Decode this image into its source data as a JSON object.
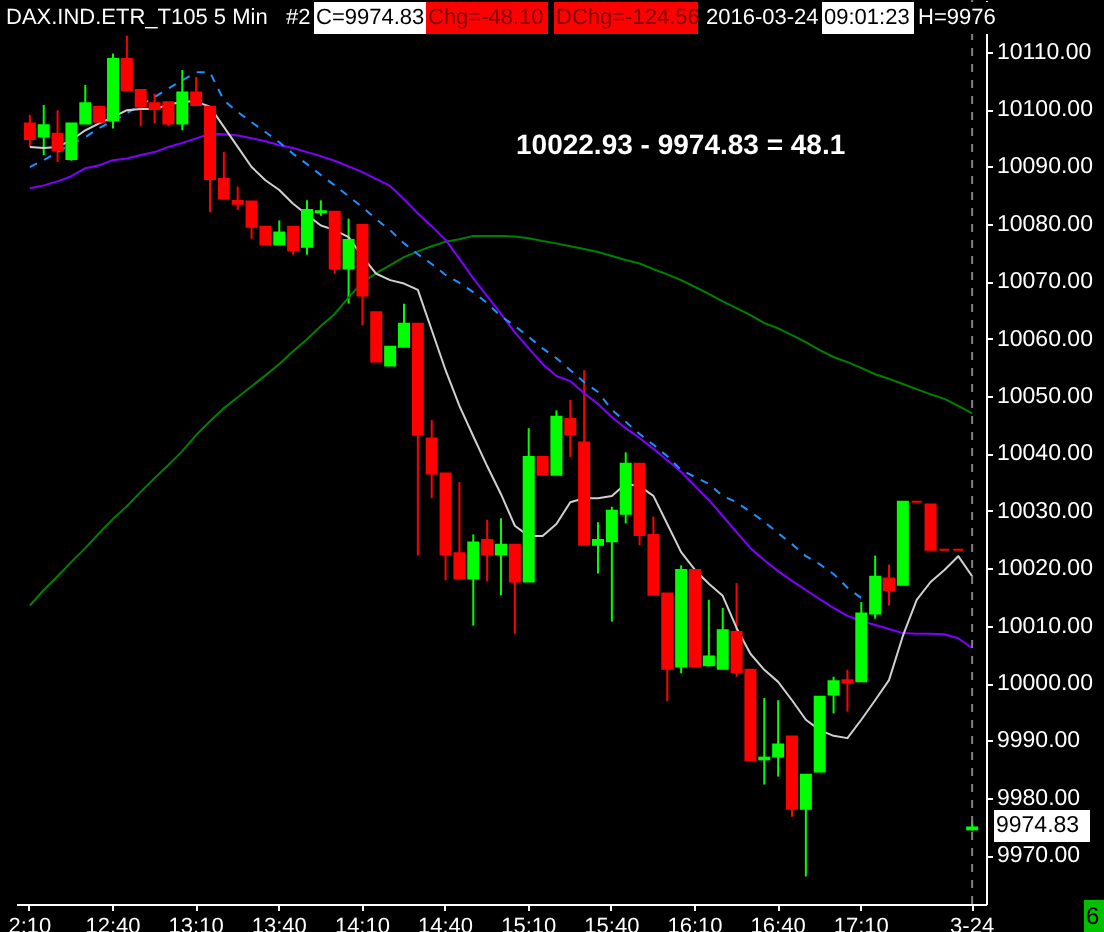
{
  "chart_data": {
    "type": "candlestick",
    "title": "DAX.IND.ETR_T105  5 Min",
    "annotations": [
      "#2",
      "C=9974.83",
      "Chg=-48.10",
      "DChg=-124.56",
      "2016-03-24",
      "09:01:23",
      "H=9976",
      "10022.93 - 9974.83 = 48.1",
      "9974.83",
      "6"
    ],
    "categories": [
      "2:10",
      null,
      null,
      null,
      null,
      null,
      "12:40",
      null,
      null,
      null,
      null,
      null,
      "13:10",
      null,
      null,
      null,
      null,
      null,
      "13:40",
      null,
      null,
      null,
      null,
      null,
      "14:10",
      null,
      null,
      null,
      null,
      null,
      "14:40",
      null,
      null,
      null,
      null,
      null,
      "15:10",
      null,
      null,
      null,
      null,
      null,
      "15:40",
      null,
      null,
      null,
      null,
      null,
      "16:10",
      null,
      null,
      null,
      null,
      null,
      "16:40",
      null,
      null,
      null,
      null,
      null,
      "17:10",
      null,
      null,
      null,
      null,
      null,
      null,
      null,
      "3-24"
    ],
    "ohlc": [
      [
        10097.5,
        10099,
        10093.4,
        10094.8
      ],
      [
        10095.2,
        10100.7,
        10092,
        10097.2
      ],
      [
        10095.7,
        10099.8,
        10090.8,
        10092.8
      ],
      [
        10091.3,
        10097.5,
        10091,
        10097.5
      ],
      [
        10097.5,
        10104.2,
        10097.5,
        10101
      ],
      [
        10100.4,
        10100.4,
        10097.8,
        10097.8
      ],
      [
        10098,
        10109.7,
        10096.6,
        10108.7
      ],
      [
        10108.7,
        10112.8,
        10103.3,
        10103.3
      ],
      [
        10103.3,
        10103.3,
        10097,
        10100.4
      ],
      [
        10101,
        10102.7,
        10097.5,
        10100
      ],
      [
        10101.2,
        10101.2,
        10097,
        10097.5
      ],
      [
        10097.5,
        10106.8,
        10096.3,
        10102.9
      ],
      [
        10102.9,
        10105.6,
        10100.7,
        10100.7
      ],
      [
        10100.4,
        10100.4,
        10082,
        10087.8
      ],
      [
        10087.8,
        10092.5,
        10084.4,
        10084.4
      ],
      [
        10084,
        10086.5,
        10082.4,
        10083.5
      ],
      [
        10083.9,
        10083.9,
        10077.4,
        10079.5
      ],
      [
        10079.5,
        10079.5,
        10076.4,
        10076.4
      ],
      [
        10076.4,
        10080.6,
        10076.4,
        10078.5
      ],
      [
        10079.5,
        10079.5,
        10074.6,
        10075.4
      ],
      [
        10076,
        10084.1,
        10074.6,
        10082.4
      ],
      [
        10082,
        10084.1,
        10081.4,
        10082.2
      ],
      [
        10082.1,
        10082.1,
        10071.3,
        10072.2
      ],
      [
        10072.2,
        10080.9,
        10066.1,
        10077.2
      ],
      [
        10079.8,
        10079.8,
        10062.3,
        10067.5
      ],
      [
        10064.6,
        10064.6,
        10056,
        10056
      ],
      [
        10055.3,
        10058.6,
        10055.3,
        10058.6
      ],
      [
        10058.6,
        10066.1,
        10058.6,
        10062.6
      ],
      [
        10062.6,
        10062.6,
        10022.2,
        10043.3
      ],
      [
        10042.6,
        10045.8,
        10032.2,
        10036.5
      ],
      [
        10036.5,
        10036.5,
        10017.9,
        10022.4
      ],
      [
        10022.6,
        10035,
        10018.2,
        10018.2
      ],
      [
        10018.2,
        10025.9,
        10010,
        10024.5
      ],
      [
        10024.9,
        10028.4,
        10017.7,
        10022.4
      ],
      [
        10022.4,
        10028.7,
        10015.3,
        10024.1
      ],
      [
        10024.1,
        10024.1,
        10008.6,
        10017.7
      ],
      [
        10017.7,
        10044.4,
        10017.7,
        10039.4
      ],
      [
        10039.4,
        10039.4,
        10036.3,
        10036.3
      ],
      [
        10036.3,
        10047.5,
        10036.3,
        10046.4
      ],
      [
        10046,
        10049.3,
        10039.4,
        10043.3
      ],
      [
        10041.9,
        10054.5,
        10024.1,
        10024.1
      ],
      [
        10024.1,
        10028,
        10019.1,
        10024.9
      ],
      [
        10024.7,
        10030.7,
        10010.7,
        10030
      ],
      [
        10029.5,
        10040.2,
        10027.8,
        10038.2
      ],
      [
        10038.2,
        10038.2,
        10024,
        10025.8
      ],
      [
        10025.8,
        10029,
        10015.4,
        10015.4
      ],
      [
        10015.6,
        10015.6,
        9996.8,
        10002.5
      ],
      [
        10002.9,
        10020.5,
        10001.7,
        10019.7
      ],
      [
        10019.7,
        10019.7,
        10002.9,
        10002.9
      ],
      [
        10003.1,
        10014.5,
        10002.9,
        10004.6
      ],
      [
        10002.5,
        10013.1,
        10002.5,
        10009.2
      ],
      [
        10008.9,
        10017.4,
        10001.1,
        10001.9
      ],
      [
        10002.3,
        10002.3,
        9986.6,
        9986.6
      ],
      [
        9986.7,
        9997.4,
        9982.3,
        9987
      ],
      [
        9987.2,
        9997,
        9983.7,
        9989.3
      ],
      [
        9990.7,
        9990.7,
        9976.7,
        9978.1
      ],
      [
        9978.1,
        9984,
        9966.3,
        9984
      ],
      [
        9984.6,
        9997.6,
        9984.6,
        9997.6
      ],
      [
        9998,
        10001.1,
        9994.7,
        10000.3
      ],
      [
        10000.5,
        10002.3,
        9995,
        10000.1
      ],
      [
        10000.3,
        10014.1,
        10000.3,
        10012.1
      ],
      [
        10012.1,
        10022.2,
        10011.2,
        10018.5
      ],
      [
        10018.2,
        10020.6,
        10013.5,
        10016.2
      ],
      [
        10017.1,
        10031.6,
        10017.1,
        10031.6
      ],
      [
        10031.6,
        10031.6,
        10031.6,
        10031.6
      ],
      [
        10031.1,
        10031.1,
        10023.2,
        10023.2
      ],
      [
        10023.2,
        10023.2,
        10023.2,
        10023.2
      ],
      [
        10023.2,
        10023.2,
        10023.2,
        10023.2
      ],
      [
        9974.5,
        9976,
        9974.3,
        9974.83
      ]
    ],
    "colors": [
      "#ff0000",
      "#00ff00",
      "#ff0000",
      "#00ff00",
      "#00ff00",
      "#ff0000",
      "#00ff00",
      "#ff0000",
      "#ff0000",
      "#ff0000",
      "#ff0000",
      "#00ff00",
      "#ff0000",
      "#ff0000",
      "#ff0000",
      "#ff0000",
      "#ff0000",
      "#ff0000",
      "#00ff00",
      "#ff0000",
      "#00ff00",
      "#00ff00",
      "#ff0000",
      "#00ff00",
      "#ff0000",
      "#ff0000",
      "#00ff00",
      "#00ff00",
      "#ff0000",
      "#ff0000",
      "#ff0000",
      "#ff0000",
      "#00ff00",
      "#ff0000",
      "#00ff00",
      "#ff0000",
      "#00ff00",
      "#ff0000",
      "#00ff00",
      "#ff0000",
      "#ff0000",
      "#00ff00",
      "#00ff00",
      "#00ff00",
      "#ff0000",
      "#ff0000",
      "#ff0000",
      "#00ff00",
      "#ff0000",
      "#00ff00",
      "#00ff00",
      "#ff0000",
      "#ff0000",
      "#00ff00",
      "#00ff00",
      "#ff0000",
      "#00ff00",
      "#00ff00",
      "#00ff00",
      "#ff0000",
      "#00ff00",
      "#00ff00",
      "#ff0000",
      "#00ff00",
      "#ff0000",
      "#ff0000",
      "#ff0000",
      "#ff0000",
      "#00ff00"
    ],
    "series": [
      {
        "type": "line",
        "color": "#008000",
        "line_style": "solid",
        "values": [
          10013.5,
          10016.2,
          10018.6,
          10021.1,
          10023.5,
          10026.1,
          10028.6,
          10030.8,
          10033.3,
          10035.7,
          10038.0,
          10040.4,
          10043.2,
          10045.6,
          10047.9,
          10049.8,
          10051.7,
          10053.6,
          10055.6,
          10057.8,
          10059.9,
          10062.2,
          10064.3,
          10067.2,
          10069.8,
          10071.4,
          10072.8,
          10074.2,
          10075.2,
          10076.1,
          10076.9,
          10077.3,
          10077.9,
          10077.9,
          10077.9,
          10077.8,
          10077.5,
          10077.0,
          10076.6,
          10076.1,
          10075.6,
          10075.1,
          10074.4,
          10073.7,
          10073.1,
          10072.1,
          10071.2,
          10070.2,
          10069.0,
          10067.8,
          10066.5,
          10065.3,
          10064.1,
          10062.7,
          10061.8,
          10060.6,
          10059.4,
          10058.0,
          10056.8,
          10055.9,
          10054.9,
          10053.8,
          10053.0,
          10052.1,
          10051.2,
          10050.3,
          10049.5,
          10048.3,
          10047.0
        ]
      },
      {
        "type": "line",
        "color": "#8000ff",
        "line_style": "solid",
        "values": [
          10086.2,
          10086.7,
          10087.4,
          10088.3,
          10089.7,
          10090.2,
          10091.1,
          10091.4,
          10092.0,
          10092.5,
          10093.4,
          10094.1,
          10094.9,
          10095.7,
          10095.6,
          10095.4,
          10094.9,
          10094.4,
          10093.7,
          10093.2,
          10092.5,
          10091.8,
          10091.0,
          10090.0,
          10089.0,
          10087.8,
          10086.6,
          10084.3,
          10081.8,
          10079.6,
          10077.2,
          10073.9,
          10070.5,
          10067.4,
          10064.3,
          10061.1,
          10058.3,
          10055.6,
          10053.5,
          10052.6,
          10050.5,
          10048.6,
          10046.3,
          10044.4,
          10042.7,
          10040.8,
          10038.8,
          10036.8,
          10034.3,
          10031.9,
          10029.1,
          10026.3,
          10023.5,
          10021.4,
          10019.5,
          10017.8,
          10016.2,
          10014.6,
          10013.1,
          10011.7,
          10010.8,
          10010.1,
          10009.4,
          10008.7,
          10008.6,
          10008.6,
          10008.5,
          10007.8,
          10006.1
        ]
      },
      {
        "type": "line",
        "color": "#1e90ff",
        "line_style": "dashed",
        "values": [
          10089.9,
          10091.1,
          10092.5,
          10093.9,
          10095.1,
          10096.7,
          10097.9,
          10099.3,
          10100.7,
          10102.1,
          10103.6,
          10105.0,
          10106.4,
          10106.4,
          10101.5,
          10099.5,
          10097.7,
          10096.0,
          10094.2,
          10092.2,
          10090.4,
          10088.5,
          10086.7,
          10084.8,
          10082.9,
          10080.8,
          10078.9,
          10076.6,
          10074.7,
          10073.0,
          10071.1,
          10069.7,
          10068.1,
          10066.2,
          10063.9,
          10062.2,
          10060.3,
          10058.3,
          10056.6,
          10054.5,
          10052.4,
          10050.7,
          10047.6,
          10045.5,
          10043.4,
          10041.5,
          10039.5,
          10037.1,
          10035.9,
          10034.7,
          10032.6,
          10031.5,
          10029.8,
          10028.1,
          10026.1,
          10024.2,
          10022.1,
          10020.7,
          10019.0,
          10016.6,
          10014.8,
          null,
          null,
          null,
          null,
          null,
          null,
          null,
          null
        ]
      },
      {
        "type": "line",
        "color": "#d0d0d0",
        "line_style": "solid",
        "values": [
          10093.4,
          10093.2,
          10093.4,
          10094.6,
          10096.3,
          10097.5,
          10098.6,
          10099.8,
          10100.0,
          10100.0,
          10100.7,
          10101.3,
          10101.3,
          10100.4,
          10096.9,
          10093.4,
          10089.9,
          10087.6,
          10085.9,
          10083.5,
          10081.6,
          10079.7,
          10078.9,
          10077.7,
          10074.3,
          10071.3,
          10070.2,
          10069.6,
          10068.5,
          10061.5,
          10054.5,
          10048.3,
          10043.0,
          10037.8,
          10032.9,
          10027.4,
          10025.6,
          10025.6,
          10027.7,
          10031.5,
          10032.2,
          10032.2,
          10032.6,
          10034.7,
          10034.3,
          10032.6,
          10027.7,
          10022.8,
          10019.7,
          10017.3,
          10015.2,
          10009.6,
          10005.1,
          10002.3,
          10000.2,
          9997.0,
          9993.6,
          9991.8,
          9990.8,
          9990.4,
          9993.6,
          9997.0,
          10000.5,
          10008.2,
          10014.5,
          10017.6,
          10019.7,
          10022.1,
          10018.6
        ]
      }
    ],
    "ylim": [
      9961.5,
      10119
    ],
    "yticks": [
      {
        "value": 9970,
        "label": "9970.00"
      },
      {
        "value": 9980,
        "label": "9980.00"
      },
      {
        "value": 9990,
        "label": "9990.00"
      },
      {
        "value": 10000,
        "label": "10000.00"
      },
      {
        "value": 10010,
        "label": "10010.00"
      },
      {
        "value": 10020,
        "label": "10020.00"
      },
      {
        "value": 10030,
        "label": "10030.00"
      },
      {
        "value": 10040,
        "label": "10040.00"
      },
      {
        "value": 10050,
        "label": "10050.00"
      },
      {
        "value": 10060,
        "label": "10060.00"
      },
      {
        "value": 10070,
        "label": "10070.00"
      },
      {
        "value": 10080,
        "label": "10080.00"
      },
      {
        "value": 10090,
        "label": "10090.00"
      },
      {
        "value": 10100,
        "label": "10100.00"
      },
      {
        "value": 10110,
        "label": "10110.00"
      }
    ],
    "ref_lines": [
      {
        "axis": "x",
        "value": "3-24",
        "color": "#808080",
        "line_style": "dashed"
      }
    ],
    "grid": false
  }
}
